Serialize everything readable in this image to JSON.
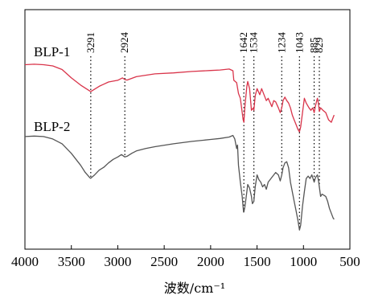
{
  "chart_data": {
    "type": "line",
    "xlabel": "波数/cm⁻¹",
    "ylabel": "",
    "xlim": [
      4000,
      500
    ],
    "x_reversed": true,
    "xticks": [
      4000,
      3500,
      3000,
      2500,
      2000,
      1500,
      1000,
      500
    ],
    "xtick_labels": [
      "4000",
      "3500",
      "3000",
      "2500",
      "2000",
      "1500",
      "1000",
      "500"
    ],
    "ylim": [
      0,
      100
    ],
    "yticks_shown": false,
    "grid": false,
    "peaks": [
      {
        "x": 3291,
        "label": "3291"
      },
      {
        "x": 2924,
        "label": "2924"
      },
      {
        "x": 1642,
        "label": "1642"
      },
      {
        "x": 1534,
        "label": "1534"
      },
      {
        "x": 1234,
        "label": "1234"
      },
      {
        "x": 1043,
        "label": "1043"
      },
      {
        "x": 885,
        "label": "885"
      },
      {
        "x": 829,
        "label": "829"
      }
    ],
    "series": [
      {
        "name": "BLP-1",
        "color": "#d9344a",
        "points": [
          [
            4000,
            77
          ],
          [
            3900,
            77.2
          ],
          [
            3800,
            77
          ],
          [
            3700,
            76.5
          ],
          [
            3600,
            75
          ],
          [
            3500,
            71.5
          ],
          [
            3400,
            68.5
          ],
          [
            3300,
            66
          ],
          [
            3291,
            65.8
          ],
          [
            3200,
            68
          ],
          [
            3100,
            69.8
          ],
          [
            3000,
            70.5
          ],
          [
            2950,
            71.5
          ],
          [
            2924,
            70.8
          ],
          [
            2900,
            70.6
          ],
          [
            2800,
            72
          ],
          [
            2600,
            73.2
          ],
          [
            2400,
            73.6
          ],
          [
            2200,
            74.2
          ],
          [
            2000,
            74.6
          ],
          [
            1900,
            74.8
          ],
          [
            1800,
            75.2
          ],
          [
            1760,
            74.5
          ],
          [
            1750,
            70.5
          ],
          [
            1720,
            69.5
          ],
          [
            1700,
            65
          ],
          [
            1680,
            63
          ],
          [
            1650,
            54
          ],
          [
            1642,
            53
          ],
          [
            1630,
            60
          ],
          [
            1610,
            68
          ],
          [
            1600,
            70
          ],
          [
            1580,
            67
          ],
          [
            1560,
            58
          ],
          [
            1540,
            59
          ],
          [
            1534,
            58
          ],
          [
            1520,
            64
          ],
          [
            1500,
            67
          ],
          [
            1470,
            64.5
          ],
          [
            1450,
            67
          ],
          [
            1420,
            64
          ],
          [
            1400,
            62
          ],
          [
            1380,
            63
          ],
          [
            1340,
            59.5
          ],
          [
            1320,
            62
          ],
          [
            1300,
            61.5
          ],
          [
            1270,
            59
          ],
          [
            1250,
            57
          ],
          [
            1234,
            59
          ],
          [
            1220,
            62
          ],
          [
            1200,
            63.5
          ],
          [
            1180,
            62
          ],
          [
            1160,
            61
          ],
          [
            1140,
            59
          ],
          [
            1120,
            56
          ],
          [
            1100,
            54
          ],
          [
            1080,
            52
          ],
          [
            1060,
            50
          ],
          [
            1043,
            49
          ],
          [
            1030,
            51
          ],
          [
            1010,
            57
          ],
          [
            990,
            63
          ],
          [
            970,
            61
          ],
          [
            940,
            59
          ],
          [
            920,
            58
          ],
          [
            900,
            59
          ],
          [
            885,
            57
          ],
          [
            870,
            60
          ],
          [
            850,
            63
          ],
          [
            840,
            61
          ],
          [
            829,
            57.5
          ],
          [
            815,
            59
          ],
          [
            790,
            58
          ],
          [
            760,
            57
          ],
          [
            730,
            54
          ],
          [
            700,
            53
          ],
          [
            680,
            55
          ],
          [
            670,
            56
          ]
        ]
      },
      {
        "name": "BLP-2",
        "color": "#555555",
        "points": [
          [
            4000,
            47
          ],
          [
            3900,
            47.2
          ],
          [
            3800,
            47
          ],
          [
            3700,
            46
          ],
          [
            3600,
            44
          ],
          [
            3500,
            40
          ],
          [
            3400,
            35
          ],
          [
            3350,
            32
          ],
          [
            3300,
            29.8
          ],
          [
            3291,
            29.6
          ],
          [
            3250,
            31
          ],
          [
            3200,
            33
          ],
          [
            3150,
            34.2
          ],
          [
            3100,
            36
          ],
          [
            3050,
            37.5
          ],
          [
            3000,
            38.5
          ],
          [
            2960,
            39.5
          ],
          [
            2924,
            38.5
          ],
          [
            2900,
            38.8
          ],
          [
            2850,
            40
          ],
          [
            2800,
            41
          ],
          [
            2700,
            42
          ],
          [
            2600,
            42.8
          ],
          [
            2400,
            44
          ],
          [
            2200,
            45
          ],
          [
            2000,
            45.8
          ],
          [
            1900,
            46.2
          ],
          [
            1800,
            46.8
          ],
          [
            1760,
            47.5
          ],
          [
            1740,
            46
          ],
          [
            1720,
            42
          ],
          [
            1710,
            43.5
          ],
          [
            1700,
            35
          ],
          [
            1680,
            28
          ],
          [
            1660,
            22
          ],
          [
            1645,
            15.5
          ],
          [
            1642,
            15.5
          ],
          [
            1630,
            18
          ],
          [
            1610,
            24
          ],
          [
            1600,
            27
          ],
          [
            1580,
            25.5
          ],
          [
            1560,
            22
          ],
          [
            1550,
            19
          ],
          [
            1534,
            20
          ],
          [
            1520,
            26
          ],
          [
            1500,
            31
          ],
          [
            1480,
            29
          ],
          [
            1460,
            28
          ],
          [
            1440,
            26
          ],
          [
            1420,
            27
          ],
          [
            1400,
            25
          ],
          [
            1380,
            28
          ],
          [
            1340,
            30
          ],
          [
            1300,
            32
          ],
          [
            1270,
            31
          ],
          [
            1250,
            28.5
          ],
          [
            1234,
            31
          ],
          [
            1220,
            34
          ],
          [
            1200,
            36
          ],
          [
            1180,
            36.5
          ],
          [
            1160,
            34
          ],
          [
            1140,
            28
          ],
          [
            1120,
            24
          ],
          [
            1100,
            20
          ],
          [
            1080,
            16
          ],
          [
            1060,
            12
          ],
          [
            1043,
            8
          ],
          [
            1030,
            10
          ],
          [
            1010,
            18
          ],
          [
            990,
            24
          ],
          [
            970,
            29.5
          ],
          [
            950,
            30.5
          ],
          [
            930,
            29.5
          ],
          [
            910,
            31
          ],
          [
            885,
            28
          ],
          [
            870,
            30
          ],
          [
            850,
            31
          ],
          [
            840,
            29
          ],
          [
            829,
            26
          ],
          [
            815,
            22
          ],
          [
            800,
            23
          ],
          [
            780,
            22.5
          ],
          [
            760,
            22
          ],
          [
            740,
            20
          ],
          [
            720,
            17
          ],
          [
            700,
            15
          ],
          [
            680,
            13
          ],
          [
            670,
            12.5
          ]
        ]
      }
    ]
  }
}
